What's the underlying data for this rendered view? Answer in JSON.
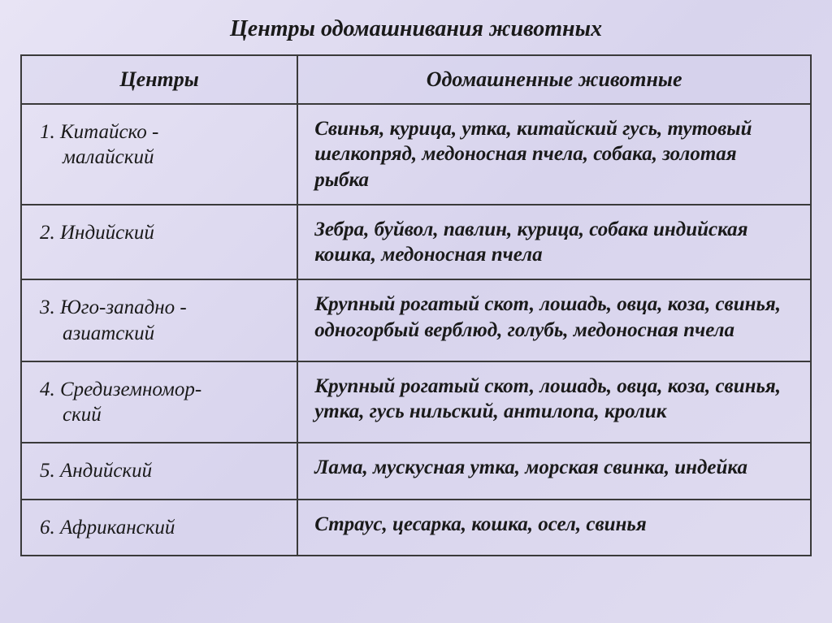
{
  "title": "Центры одомашнивания животных",
  "columns": {
    "centers": "Центры",
    "animals": "Одомашненные животные"
  },
  "rows": [
    {
      "num": "1.",
      "center_line1": "Китайско -",
      "center_line2": "малайский",
      "animals": "Свинья, курица, утка, китайский гусь, тутовый шелкопряд, медоносная пчела, собака, золотая рыбка"
    },
    {
      "num": "2.",
      "center_line1": "Индийский",
      "center_line2": "",
      "animals": "Зебра, буйвол, павлин, курица, собака индийская кошка, медоносная пчела"
    },
    {
      "num": "3.",
      "center_line1": "Юго-западно -",
      "center_line2": "азиатский",
      "animals": "Крупный рогатый скот, лошадь, овца, коза, свинья, одногорбый верблюд, голубь, медоносная пчела"
    },
    {
      "num": "4.",
      "center_line1": "Средиземномор-",
      "center_line2": "ский",
      "animals": "Крупный рогатый скот, лошадь, овца, коза, свинья, утка, гусь нильский, антилопа, кролик"
    },
    {
      "num": "5.",
      "center_line1": "Андийский",
      "center_line2": "",
      "animals": "Лама, мускусная утка, морская свинка, индейка"
    },
    {
      "num": "6.",
      "center_line1": "Африканский",
      "center_line2": "",
      "animals": "Страус, цесарка, кошка, осел, свинья"
    }
  ]
}
